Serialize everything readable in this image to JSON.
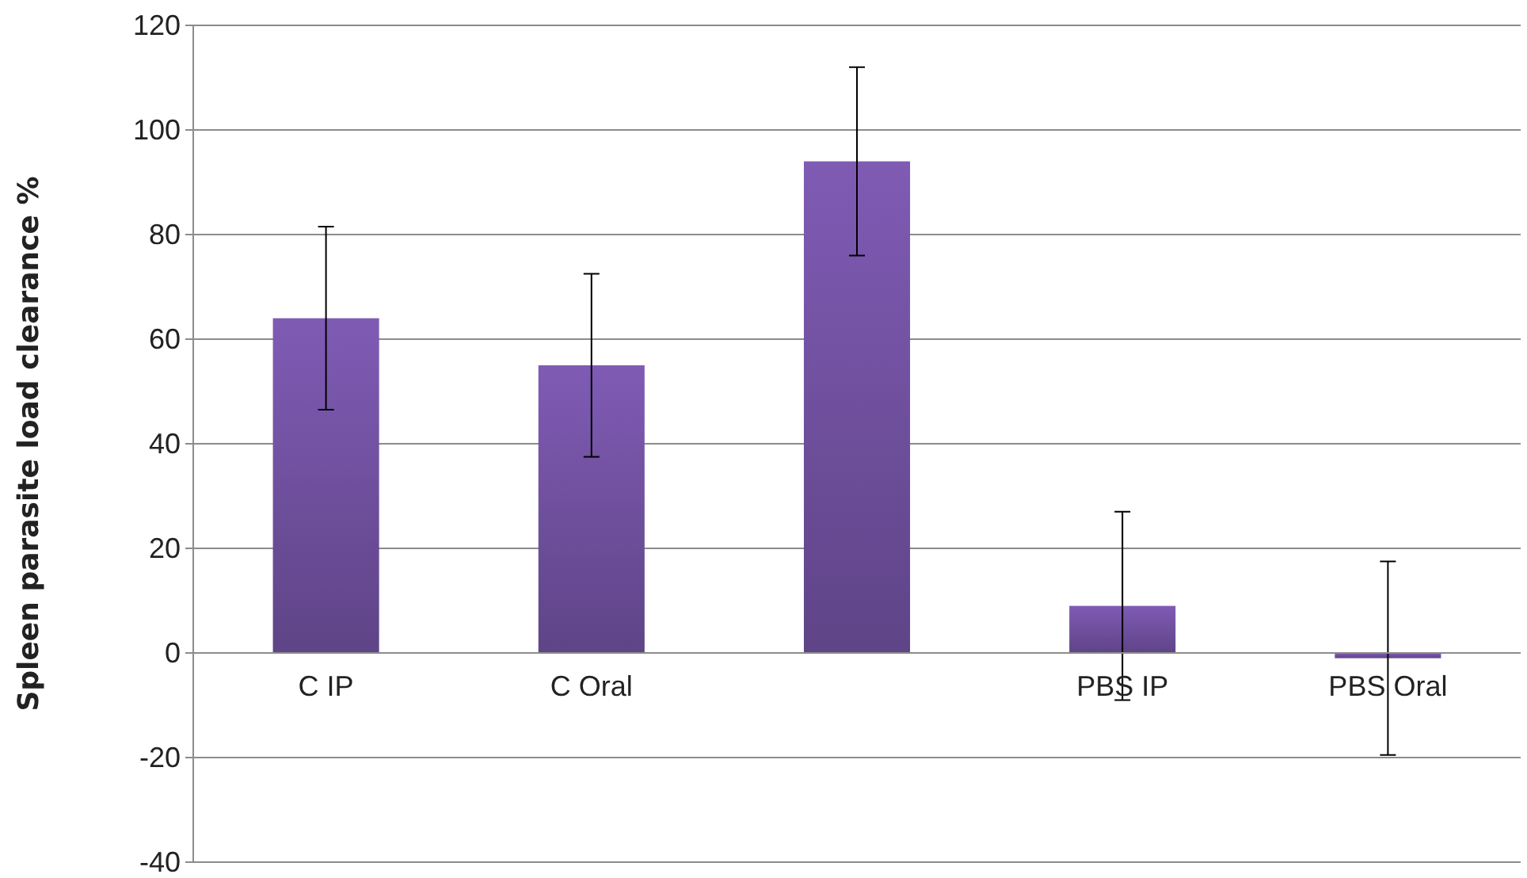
{
  "chart_data": {
    "type": "bar",
    "ylabel": "Spleen parasite load clearance %",
    "categories": [
      "C IP",
      "C Oral",
      null,
      "PBS IP",
      "PBS Oral"
    ],
    "values": [
      64,
      55,
      94,
      9,
      -1
    ],
    "errors": [
      17.5,
      17.5,
      18,
      18,
      18.5
    ],
    "color": "#6e4f9c",
    "ylim": [
      -40,
      120
    ],
    "yticks": [
      -40,
      -20,
      0,
      20,
      40,
      60,
      80,
      100,
      120
    ],
    "grid": "y"
  }
}
